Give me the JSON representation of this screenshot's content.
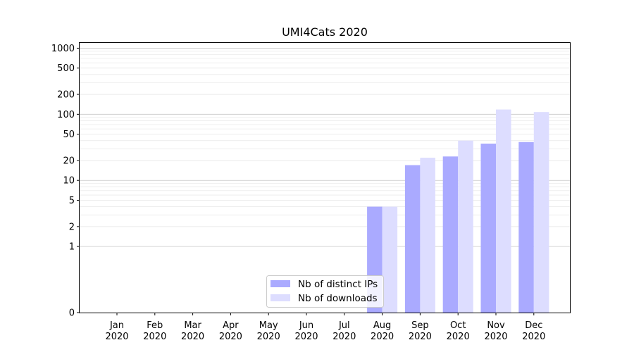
{
  "chart_data": {
    "type": "bar",
    "title": "UMI4Cats 2020",
    "xlabel": "",
    "ylabel": "",
    "y_scale": "symlog",
    "ylim": [
      0,
      1200
    ],
    "y_ticks": [
      {
        "value": 0,
        "label": "0"
      },
      {
        "value": 1,
        "label": "1"
      },
      {
        "value": 2,
        "label": "2"
      },
      {
        "value": 5,
        "label": "5"
      },
      {
        "value": 10,
        "label": "10"
      },
      {
        "value": 20,
        "label": "20"
      },
      {
        "value": 50,
        "label": "50"
      },
      {
        "value": 100,
        "label": "100"
      },
      {
        "value": 200,
        "label": "200"
      },
      {
        "value": 500,
        "label": "500"
      },
      {
        "value": 1000,
        "label": "1000"
      }
    ],
    "grid": "horizontal",
    "legend_position": "lower-center",
    "categories": [
      [
        "Jan",
        "2020"
      ],
      [
        "Feb",
        "2020"
      ],
      [
        "Mar",
        "2020"
      ],
      [
        "Apr",
        "2020"
      ],
      [
        "May",
        "2020"
      ],
      [
        "Jun",
        "2020"
      ],
      [
        "Jul",
        "2020"
      ],
      [
        "Aug",
        "2020"
      ],
      [
        "Sep",
        "2020"
      ],
      [
        "Oct",
        "2020"
      ],
      [
        "Nov",
        "2020"
      ],
      [
        "Dec",
        "2020"
      ]
    ],
    "series": [
      {
        "name": "Nb of distinct IPs",
        "color": "#aaaaff",
        "values": [
          0,
          0,
          0,
          0,
          0,
          0,
          0,
          4,
          17,
          23,
          36,
          38
        ]
      },
      {
        "name": "Nb of downloads",
        "color": "#ddddff",
        "values": [
          0,
          0,
          0,
          0,
          0,
          0,
          0,
          4,
          22,
          40,
          118,
          108
        ]
      }
    ]
  }
}
